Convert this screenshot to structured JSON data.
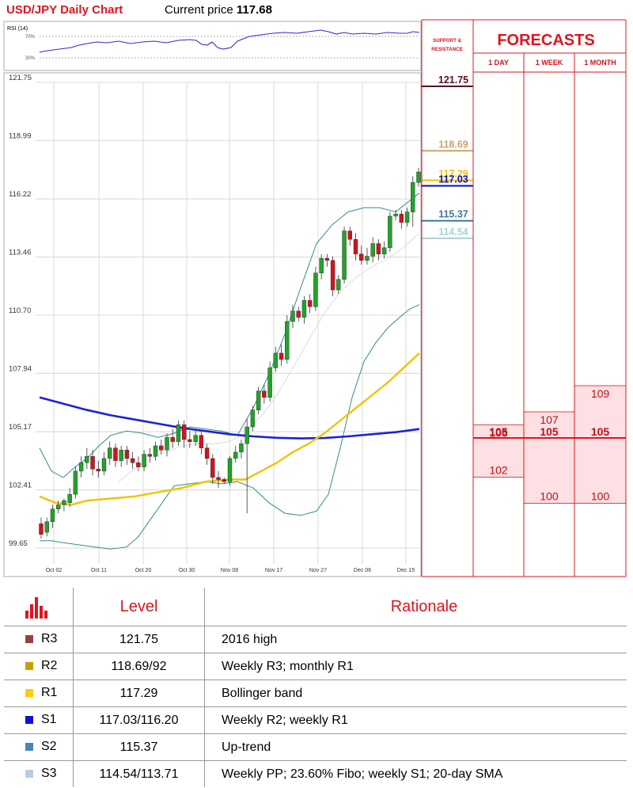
{
  "header": {
    "title": "USD/JPY Daily Chart",
    "price_label": "Current price",
    "price_value": "117.68"
  },
  "chart_data": {
    "type": "candlestick",
    "y_ticks": [
      "121.75",
      "118.99",
      "116.22",
      "113.46",
      "110.70",
      "107.94",
      "105.17",
      "102.41",
      "99.65"
    ],
    "x_ticks": [
      "Oct 02",
      "Oct 11",
      "Oct 20",
      "Oct 30",
      "Nov 08",
      "Nov 17",
      "Nov 27",
      "Dec 06",
      "Dec 15"
    ],
    "ylim": [
      99.65,
      121.75
    ],
    "candles": [
      [
        100.8,
        100.3,
        101.1,
        100.1
      ],
      [
        100.4,
        100.9,
        101.1,
        100.2
      ],
      [
        100.9,
        101.5,
        101.7,
        100.6
      ],
      [
        101.5,
        101.7,
        101.9,
        101.3
      ],
      [
        101.7,
        101.9,
        102.0,
        101.4
      ],
      [
        101.8,
        102.2,
        102.5,
        101.6
      ],
      [
        102.2,
        103.3,
        103.5,
        102.0
      ],
      [
        103.3,
        103.7,
        104.0,
        103.0
      ],
      [
        103.7,
        104.0,
        104.4,
        103.4
      ],
      [
        104.0,
        103.4,
        104.3,
        103.1
      ],
      [
        103.4,
        103.3,
        103.8,
        103.0
      ],
      [
        103.3,
        103.9,
        104.2,
        103.1
      ],
      [
        103.9,
        104.4,
        104.7,
        103.6
      ],
      [
        104.4,
        103.8,
        104.6,
        103.5
      ],
      [
        103.8,
        104.3,
        104.5,
        103.5
      ],
      [
        104.3,
        103.9,
        104.5,
        103.6
      ],
      [
        103.9,
        103.7,
        104.2,
        103.4
      ],
      [
        103.7,
        103.5,
        104.0,
        103.3
      ],
      [
        103.5,
        104.1,
        104.3,
        103.3
      ],
      [
        104.1,
        104.0,
        104.4,
        103.7
      ],
      [
        104.0,
        104.5,
        104.7,
        103.8
      ],
      [
        104.5,
        104.3,
        104.8,
        104.1
      ],
      [
        104.3,
        104.9,
        105.1,
        104.0
      ],
      [
        104.9,
        104.7,
        105.3,
        104.4
      ],
      [
        104.7,
        105.5,
        105.7,
        104.5
      ],
      [
        105.5,
        104.8,
        105.7,
        104.4
      ],
      [
        104.8,
        104.7,
        105.2,
        104.4
      ],
      [
        104.7,
        105.0,
        105.3,
        104.5
      ],
      [
        105.0,
        104.4,
        105.2,
        104.1
      ],
      [
        104.4,
        103.9,
        104.6,
        103.6
      ],
      [
        103.9,
        103.0,
        104.1,
        102.7
      ],
      [
        103.0,
        102.9,
        103.3,
        102.5
      ],
      [
        102.9,
        102.8,
        103.0,
        102.7
      ],
      [
        102.8,
        103.9,
        104.0,
        102.6
      ],
      [
        103.9,
        104.2,
        104.5,
        103.7
      ],
      [
        104.2,
        104.6,
        104.8,
        103.9
      ],
      [
        104.6,
        105.4,
        105.8,
        101.3
      ],
      [
        105.4,
        106.2,
        106.4,
        105.2
      ],
      [
        106.2,
        107.1,
        107.3,
        106.0
      ],
      [
        107.1,
        106.8,
        107.4,
        106.5
      ],
      [
        106.8,
        108.2,
        108.5,
        106.6
      ],
      [
        108.2,
        108.9,
        109.2,
        108.0
      ],
      [
        108.9,
        108.6,
        109.3,
        108.3
      ],
      [
        108.6,
        110.4,
        110.7,
        108.4
      ],
      [
        110.4,
        110.9,
        111.2,
        110.1
      ],
      [
        110.9,
        110.6,
        111.1,
        110.4
      ],
      [
        110.6,
        111.4,
        111.6,
        110.3
      ],
      [
        111.4,
        111.1,
        111.7,
        110.8
      ],
      [
        111.1,
        112.7,
        113.0,
        110.9
      ],
      [
        112.7,
        113.4,
        113.6,
        112.4
      ],
      [
        113.4,
        113.3,
        113.6,
        113.0
      ],
      [
        113.3,
        111.9,
        113.5,
        111.6
      ],
      [
        111.9,
        112.4,
        112.6,
        111.7
      ],
      [
        112.4,
        114.7,
        114.9,
        112.2
      ],
      [
        114.7,
        114.3,
        114.9,
        114.0
      ],
      [
        114.3,
        113.6,
        114.6,
        113.3
      ],
      [
        113.6,
        113.3,
        114.0,
        113.1
      ],
      [
        113.3,
        113.5,
        113.9,
        113.1
      ],
      [
        113.5,
        114.1,
        114.4,
        113.2
      ],
      [
        114.1,
        113.6,
        114.3,
        113.3
      ],
      [
        113.6,
        113.9,
        114.2,
        113.4
      ],
      [
        113.9,
        115.4,
        115.6,
        113.7
      ],
      [
        115.4,
        115.5,
        115.7,
        115.2
      ],
      [
        115.5,
        115.1,
        115.7,
        114.8
      ],
      [
        115.1,
        115.6,
        115.8,
        114.9
      ],
      [
        115.6,
        117.0,
        117.3,
        114.9
      ],
      [
        117.0,
        117.5,
        117.7,
        116.8
      ]
    ],
    "support_resistance": [
      {
        "value": "121.75",
        "price": 121.75,
        "color": "#5b0f1e"
      },
      {
        "value": "118.69",
        "price": 118.69,
        "color": "#c9a46a"
      },
      {
        "value": "117.29",
        "price": 117.29,
        "color": "#f2c200"
      },
      {
        "value": "117.03",
        "price": 117.03,
        "color": "#0a10c8"
      },
      {
        "value": "115.37",
        "price": 115.37,
        "color": "#3c7a9e"
      },
      {
        "value": "114.54",
        "price": 114.54,
        "color": "#a9d2d2"
      }
    ],
    "rsi": {
      "label": "RSI (14)",
      "levels": [
        "70%",
        "30%"
      ]
    }
  },
  "forecasts": {
    "title": "FORECASTS",
    "sr_label_line1": "SUPPORT &",
    "sr_label_line2": "RESISTANCE",
    "columns": [
      "1 DAY",
      "1 WEEK",
      "1 MONTH"
    ],
    "current": 105,
    "current_labels": [
      "105",
      "105",
      "105"
    ],
    "one_day": {
      "high": "106",
      "low": "102",
      "high_value": 106,
      "low_value": 102
    },
    "one_week": {
      "high": "107",
      "low": "100",
      "high_value": 107,
      "low_value": 100
    },
    "one_month": {
      "high": "109",
      "low": "100",
      "high_value": 109,
      "low_value": 100
    }
  },
  "levels_table": {
    "header": {
      "icon": "bar-chart-icon",
      "level": "Level",
      "rationale": "Rationale"
    },
    "rows": [
      {
        "name": "R3",
        "level": "121.75",
        "rationale": "2016 high",
        "color": "#944040"
      },
      {
        "name": "R2",
        "level": "118.69/92",
        "rationale": "Weekly R3; monthly R1",
        "color": "#c9a000"
      },
      {
        "name": "R1",
        "level": "117.29",
        "rationale": "Bollinger band",
        "color": "#ffcc00"
      },
      {
        "name": "S1",
        "level": "117.03/116.20",
        "rationale": "Weekly R2; weekly R1",
        "color": "#1010d0"
      },
      {
        "name": "S2",
        "level": "115.37",
        "rationale": "Up-trend",
        "color": "#4a84b8"
      },
      {
        "name": "S3",
        "level": "114.54/113.71",
        "rationale": "Weekly PP; 23.60% Fibo; weekly S1; 20-day SMA",
        "color": "#b8cce4"
      }
    ]
  },
  "colors": {
    "bull": "#22a32a",
    "bear": "#d0141e",
    "sma_blue": "#1c22d8",
    "sma_yellow": "#f2c200",
    "bollinger": "#2f8f8f"
  }
}
